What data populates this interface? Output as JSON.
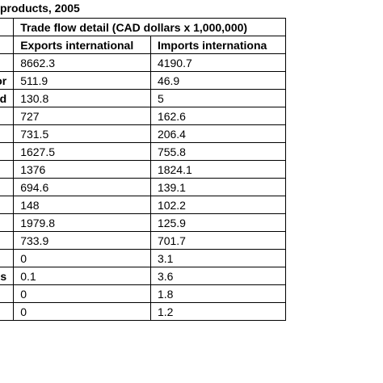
{
  "caption": "products, 2005",
  "table": {
    "group_header": "Trade flow detail (CAD dollars x 1,000,000)",
    "columns": [
      "Exports international",
      "Imports internationa"
    ],
    "rows": [
      {
        "region": "",
        "exports": "8662.3",
        "imports": "4190.7"
      },
      {
        "region": "Labrador",
        "exports": "511.9",
        "imports": "46.9"
      },
      {
        "region": "d",
        "exports": "130.8",
        "imports": "5"
      },
      {
        "region": "",
        "exports": "727",
        "imports": "162.6"
      },
      {
        "region": "",
        "exports": "731.5",
        "imports": "206.4"
      },
      {
        "region": "",
        "exports": "1627.5",
        "imports": "755.8"
      },
      {
        "region": "",
        "exports": "1376",
        "imports": "1824.1"
      },
      {
        "region": "",
        "exports": "694.6",
        "imports": "139.1"
      },
      {
        "region": "",
        "exports": "148",
        "imports": "102.2"
      },
      {
        "region": "",
        "exports": "1979.8",
        "imports": "125.9"
      },
      {
        "region": "",
        "exports": "733.9",
        "imports": "701.7"
      },
      {
        "region": "",
        "exports": "0",
        "imports": "3.1"
      },
      {
        "region": "es",
        "exports": "0.1",
        "imports": "3.6"
      },
      {
        "region": "",
        "exports": "0",
        "imports": "1.8"
      },
      {
        "region": "",
        "exports": "0",
        "imports": "1.2"
      }
    ]
  }
}
